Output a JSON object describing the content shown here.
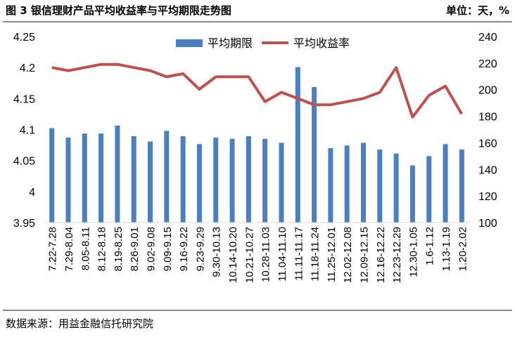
{
  "header": {
    "title": "图 3  银信理财产品平均收益率与平均期限走势图",
    "unit": "单位：天，%"
  },
  "footer": {
    "source": "数据来源：用益金融信托研究院"
  },
  "colors": {
    "bar": "#4a7fc1",
    "line": "#c0504d",
    "rule": "#8b8b8b"
  },
  "chart_data": {
    "type": "bar+line",
    "title": "",
    "legend": [
      "平均期限",
      "平均收益率"
    ],
    "legend_position": "top-center",
    "categories": [
      "7.22-7.28",
      "7.29-8.04",
      "8.05-8.11",
      "8.12-8.18",
      "8.19-8.25",
      "8.26-9.01",
      "9.02-9.08",
      "9.09-9.15",
      "9.16-9.22",
      "9.23-9.29",
      "9.30-10.13",
      "10.14-10.20",
      "10.21-10.27",
      "10.28-11.03",
      "11.04-11.10",
      "11.11-11.17",
      "11.18-11.24",
      "11.25-12.01",
      "12.02-12.08",
      "12.09-12.15",
      "12.16-12.22",
      "12.23-12.29",
      "12.30-1.05",
      "1.6-1.12",
      "1.13-1.19",
      "1.20-2.02"
    ],
    "series": [
      {
        "name": "平均期限",
        "type": "bar",
        "axis": "right",
        "values": [
          171,
          164,
          167,
          167,
          173,
          165,
          161,
          169,
          165,
          159,
          164,
          163,
          165,
          163,
          160,
          217,
          202,
          156,
          158,
          160,
          155,
          152,
          143,
          150,
          159,
          155
        ]
      },
      {
        "name": "平均收益率",
        "type": "line",
        "axis": "left",
        "values": [
          4.2,
          4.195,
          4.2,
          4.205,
          4.205,
          4.2,
          4.195,
          4.185,
          4.19,
          4.165,
          4.185,
          4.185,
          4.185,
          4.145,
          4.16,
          4.15,
          4.14,
          4.14,
          4.145,
          4.15,
          4.16,
          4.2,
          4.12,
          4.155,
          4.17,
          4.125
        ]
      }
    ],
    "y_left": {
      "min": 3.95,
      "max": 4.25,
      "ticks": [
        "3.95",
        "4",
        "4.05",
        "4.1",
        "4.15",
        "4.2",
        "4.25"
      ]
    },
    "y_right": {
      "min": 100,
      "max": 240,
      "ticks": [
        "100",
        "120",
        "140",
        "160",
        "180",
        "200",
        "220",
        "240"
      ]
    },
    "grid": false
  }
}
